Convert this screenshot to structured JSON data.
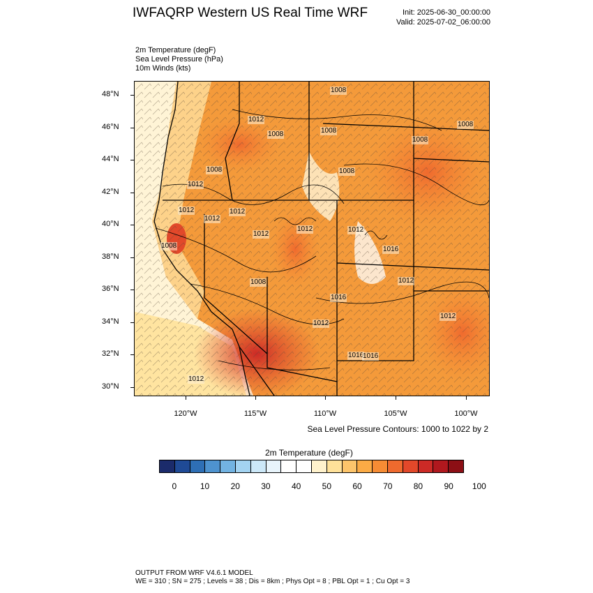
{
  "header": {
    "title": "IWFAQRP Western US Real Time WRF",
    "init": "Init: 2025-06-30_00:00:00",
    "valid": "Valid: 2025-07-02_06:00:00"
  },
  "fields": [
    "2m Temperature   (degF)",
    "Sea Level Pressure   (hPa)",
    "10m Winds   (kts)"
  ],
  "map": {
    "lat_labels": [
      "48°N",
      "46°N",
      "44°N",
      "42°N",
      "40°N",
      "38°N",
      "36°N",
      "34°N",
      "32°N",
      "30°N"
    ],
    "lon_labels": [
      "120°W",
      "115°W",
      "110°W",
      "105°W",
      "100°W"
    ],
    "pressure_labels": [
      "1008",
      "1012",
      "1008",
      "1008",
      "1008",
      "1008",
      "1008",
      "1012",
      "1012",
      "1012",
      "1008",
      "1008",
      "1012",
      "1012",
      "1012",
      "1008",
      "1012",
      "1016",
      "1012",
      "1016",
      "1016",
      "1012",
      "1012",
      "1016",
      "1012"
    ],
    "contour_note": "Sea Level Pressure Contours: 1000 to 1022 by 2"
  },
  "colorbar": {
    "title": "2m Temperature  (degF)",
    "colors": [
      "#1b2b6b",
      "#1f4a96",
      "#2e6fb5",
      "#4e93cf",
      "#72b3e2",
      "#a3d3f1",
      "#cce8f8",
      "#e8f4fb",
      "#ffffff",
      "#ffffff",
      "#fff2cc",
      "#ffe199",
      "#fdc56b",
      "#fbab45",
      "#f68c34",
      "#ef6a2e",
      "#e2482a",
      "#cc2a26",
      "#b0181e",
      "#8c0f15"
    ],
    "labels": [
      "0",
      "10",
      "20",
      "30",
      "40",
      "50",
      "60",
      "70",
      "80",
      "90",
      "100"
    ]
  },
  "footer": {
    "line1": "OUTPUT FROM WRF V4.6.1 MODEL",
    "line2": "WE = 310 ; SN = 275 ; Levels = 38 ; Dis = 8km ; Phys Opt = 8 ; PBL Opt = 1 ; Cu Opt = 3"
  }
}
